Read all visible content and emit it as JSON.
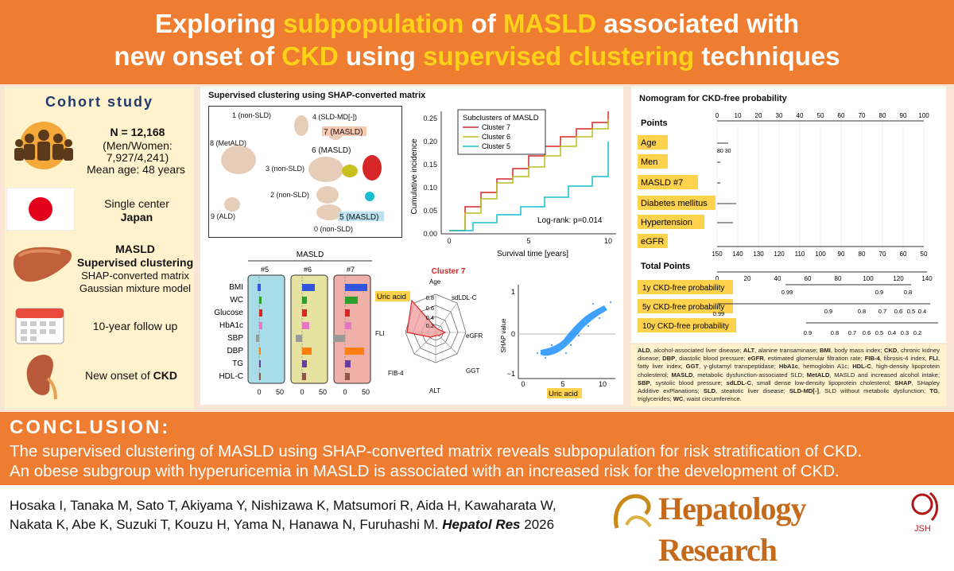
{
  "header": {
    "l1a": "Exploring ",
    "l1b": "subpopulation",
    "l1c": " of ",
    "l1d": "MASLD",
    "l1e": " associated with",
    "l2a": "new onset of ",
    "l2b": "CKD",
    "l2c": " using ",
    "l2d": "supervised clustering",
    "l2e": " techniques"
  },
  "left": {
    "cohort": "Cohort study",
    "n": "N = 12,168",
    "mw1": "(Men/Women:",
    "mw2": "7,927/4,241)",
    "age": "Mean age: 48 years",
    "center": "Single center",
    "country": "Japan",
    "m1": "MASLD",
    "m2": "Supervised clustering",
    "m3": "SHAP-converted matrix",
    "m4": "Gaussian mixture model",
    "follow": "10-year follow up",
    "onset_a": "New onset of ",
    "onset_b": "CKD"
  },
  "colors": {
    "orange": "#ee7d31",
    "yellow": "#ffd21a",
    "cluster7": "#d62728",
    "cluster6": "#bcbd22",
    "cluster5": "#17becf",
    "beige": "#e6cdb8"
  },
  "umap": {
    "title": "Supervised clustering using SHAP-converted matrix",
    "labels": [
      "1 (non-SLD)",
      "4 (SLD-MD[-])",
      "7 (MASLD)",
      "8 (MetALD)",
      "6 (MASLD)",
      "3 (non-SLD)",
      "2 (non-SLD)",
      "5 (MASLD)",
      "9 (ALD)",
      "0 (non-SLD)"
    ]
  },
  "km": {
    "legend_title": "Subclusters of MASLD",
    "legend": [
      "Cluster 7",
      "Cluster 6",
      "Cluster 5"
    ],
    "ylabel": "Cumulative incidence",
    "xlabel": "Survival time [years]",
    "logrank": "Log-rank: p=0.014",
    "yticks": [
      "0.25",
      "0.20",
      "0.15",
      "0.10",
      "0.05",
      "0.00"
    ],
    "xticks": [
      "0",
      "5",
      "10"
    ]
  },
  "bars": {
    "title": "MASLD",
    "cols": [
      "#5",
      "#6",
      "#7"
    ],
    "rows": [
      "BMI",
      "WC",
      "Glucose",
      "HbA1c",
      "SBP",
      "DBP",
      "TG",
      "HDL-C"
    ],
    "xticks": [
      "0",
      "50"
    ]
  },
  "radar": {
    "title": "Cluster 7",
    "axes": [
      "Age",
      "sdLDL-C",
      "eGFR",
      "GGT",
      "ALT",
      "FIB-4",
      "FLI",
      "Uric acid"
    ],
    "rings": [
      "0.8",
      "0.6",
      "0.4",
      "0.2"
    ]
  },
  "shap": {
    "ylabel": "SHAP value",
    "xlabel": "Uric acid",
    "xticks": [
      "0",
      "5",
      "10"
    ],
    "yticks": [
      "1",
      "0",
      "−1"
    ]
  },
  "nomo": {
    "title": "Nomogram for CKD-free probability",
    "rows": [
      "Points",
      "Age",
      "Men",
      "MASLD #7",
      "Diabetes mellitus",
      "Hypertension",
      "eGFR",
      "Total Points",
      "1y CKD-free probability",
      "5y CKD-free probability",
      "10y CKD-free probability"
    ],
    "points_ticks": [
      "0",
      "10",
      "20",
      "30",
      "40",
      "50",
      "60",
      "70",
      "80",
      "90",
      "100"
    ],
    "egfr_ticks": [
      "150",
      "140",
      "130",
      "120",
      "110",
      "100",
      "90",
      "80",
      "70",
      "60",
      "50"
    ],
    "total_ticks": [
      "0",
      "20",
      "40",
      "60",
      "80",
      "100",
      "120",
      "140"
    ],
    "age_ticks": "80 30",
    "p1": [
      "0.99",
      "0.9",
      "0.8"
    ],
    "p5": [
      "0.99",
      "0.9",
      "0.8",
      "0.7",
      "0.6",
      "0.5",
      "0.4"
    ],
    "p10": [
      "0.9",
      "0.8",
      "0.7",
      "0.6",
      "0.5",
      "0.4",
      "0.3",
      "0.2"
    ]
  },
  "abbrev": [
    [
      "ALD",
      ", alcohol-associated liver disease; "
    ],
    [
      "ALT",
      ", alanine transaminase; "
    ],
    [
      "BMI",
      ", body mass index; "
    ],
    [
      "CKD",
      ", chronic kidney disease; "
    ],
    [
      "DBP",
      ", diastolic blood pressure; "
    ],
    [
      "eGFR",
      ", estimated glomerular filtration rate; "
    ],
    [
      "FIB-4",
      ", fibrosis-4 index, "
    ],
    [
      "FLI",
      ", fatty liver index; "
    ],
    [
      "GGT",
      ", γ-glutamyl transpeptidase; "
    ],
    [
      "HbA1c",
      ", hemoglobin A1c; "
    ],
    [
      "HDL-C",
      ", high-density lipoprotein cholesterol; "
    ],
    [
      "MASLD",
      ", metabolic dysfunction-associated SLD; "
    ],
    [
      "MetALD",
      ", MASLD and increased alcohol intake; "
    ],
    [
      "SBP",
      ", systolic blood pressure; "
    ],
    [
      "sdLDL-C",
      ", small dense low-density lipoprotein cholesterol; "
    ],
    [
      "SHAP",
      ", SHapley Additive exPlanations; "
    ],
    [
      "SLD",
      ", steatotic liver disease; "
    ],
    [
      "SLD-MD[-]",
      ", SLD without metabolic dysfunction; "
    ],
    [
      "TG",
      ", triglycerides; "
    ],
    [
      "WC",
      ", waist circumference."
    ]
  ],
  "conclusion": {
    "title": "CONCLUSION:",
    "l1": "The supervised clustering of MASLD using SHAP-converted matrix reveals subpopulation for risk stratification of CKD.",
    "l2": "An obese subgroup with hyperuricemia in MASLD is associated with an increased risk for the development of CKD."
  },
  "footer": {
    "a1": "Hosaka I, Tanaka M, Sato T, Akiyama Y, Nishizawa K, Matsumori R, Aida H, Kawaharata W,",
    "a2": "Nakata K, Abe K, Suzuki T, Kouzu H, Yama N, Hanawa N, Furuhashi M. ",
    "journal": "Hepatol Res",
    "year": " 2026",
    "banner": "Hepatology Research",
    "jsh": "JSH"
  }
}
